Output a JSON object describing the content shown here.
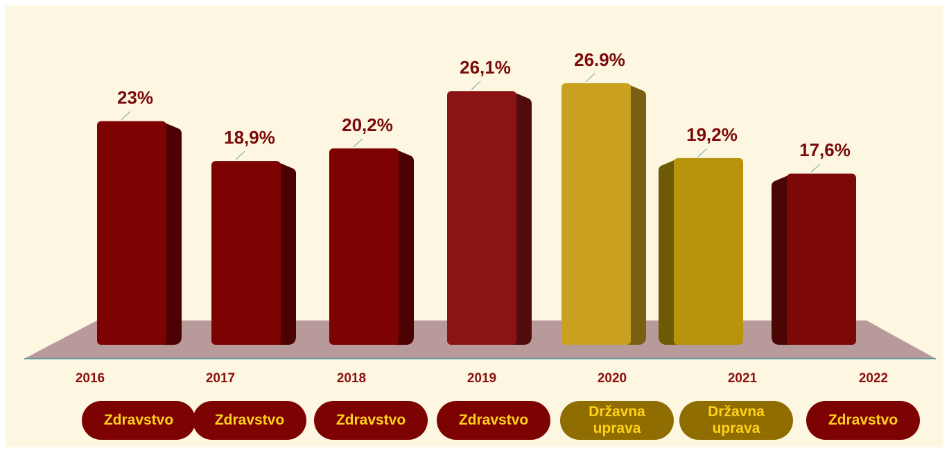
{
  "chart_data": {
    "type": "bar",
    "categories": [
      "2016",
      "2017",
      "2018",
      "2019",
      "2020",
      "2021",
      "2022"
    ],
    "values": [
      23,
      18.9,
      20.2,
      26.1,
      26.9,
      19.2,
      17.6
    ],
    "value_labels": [
      "23%",
      "18,9%",
      "20,2%",
      "26,1%",
      "26.9%",
      "19,2%",
      "17,6%"
    ],
    "sectors": [
      "Zdravstvo",
      "Zdravstvo",
      "Zdravstvo",
      "Zdravstvo",
      "Državna uprava",
      "Državna uprava",
      "Zdravstvo"
    ],
    "colors": [
      "#7d0202",
      "#7d0202",
      "#7d0202",
      "#8a1414",
      "#c9a020",
      "#b8940c",
      "#7d0808"
    ]
  }
}
